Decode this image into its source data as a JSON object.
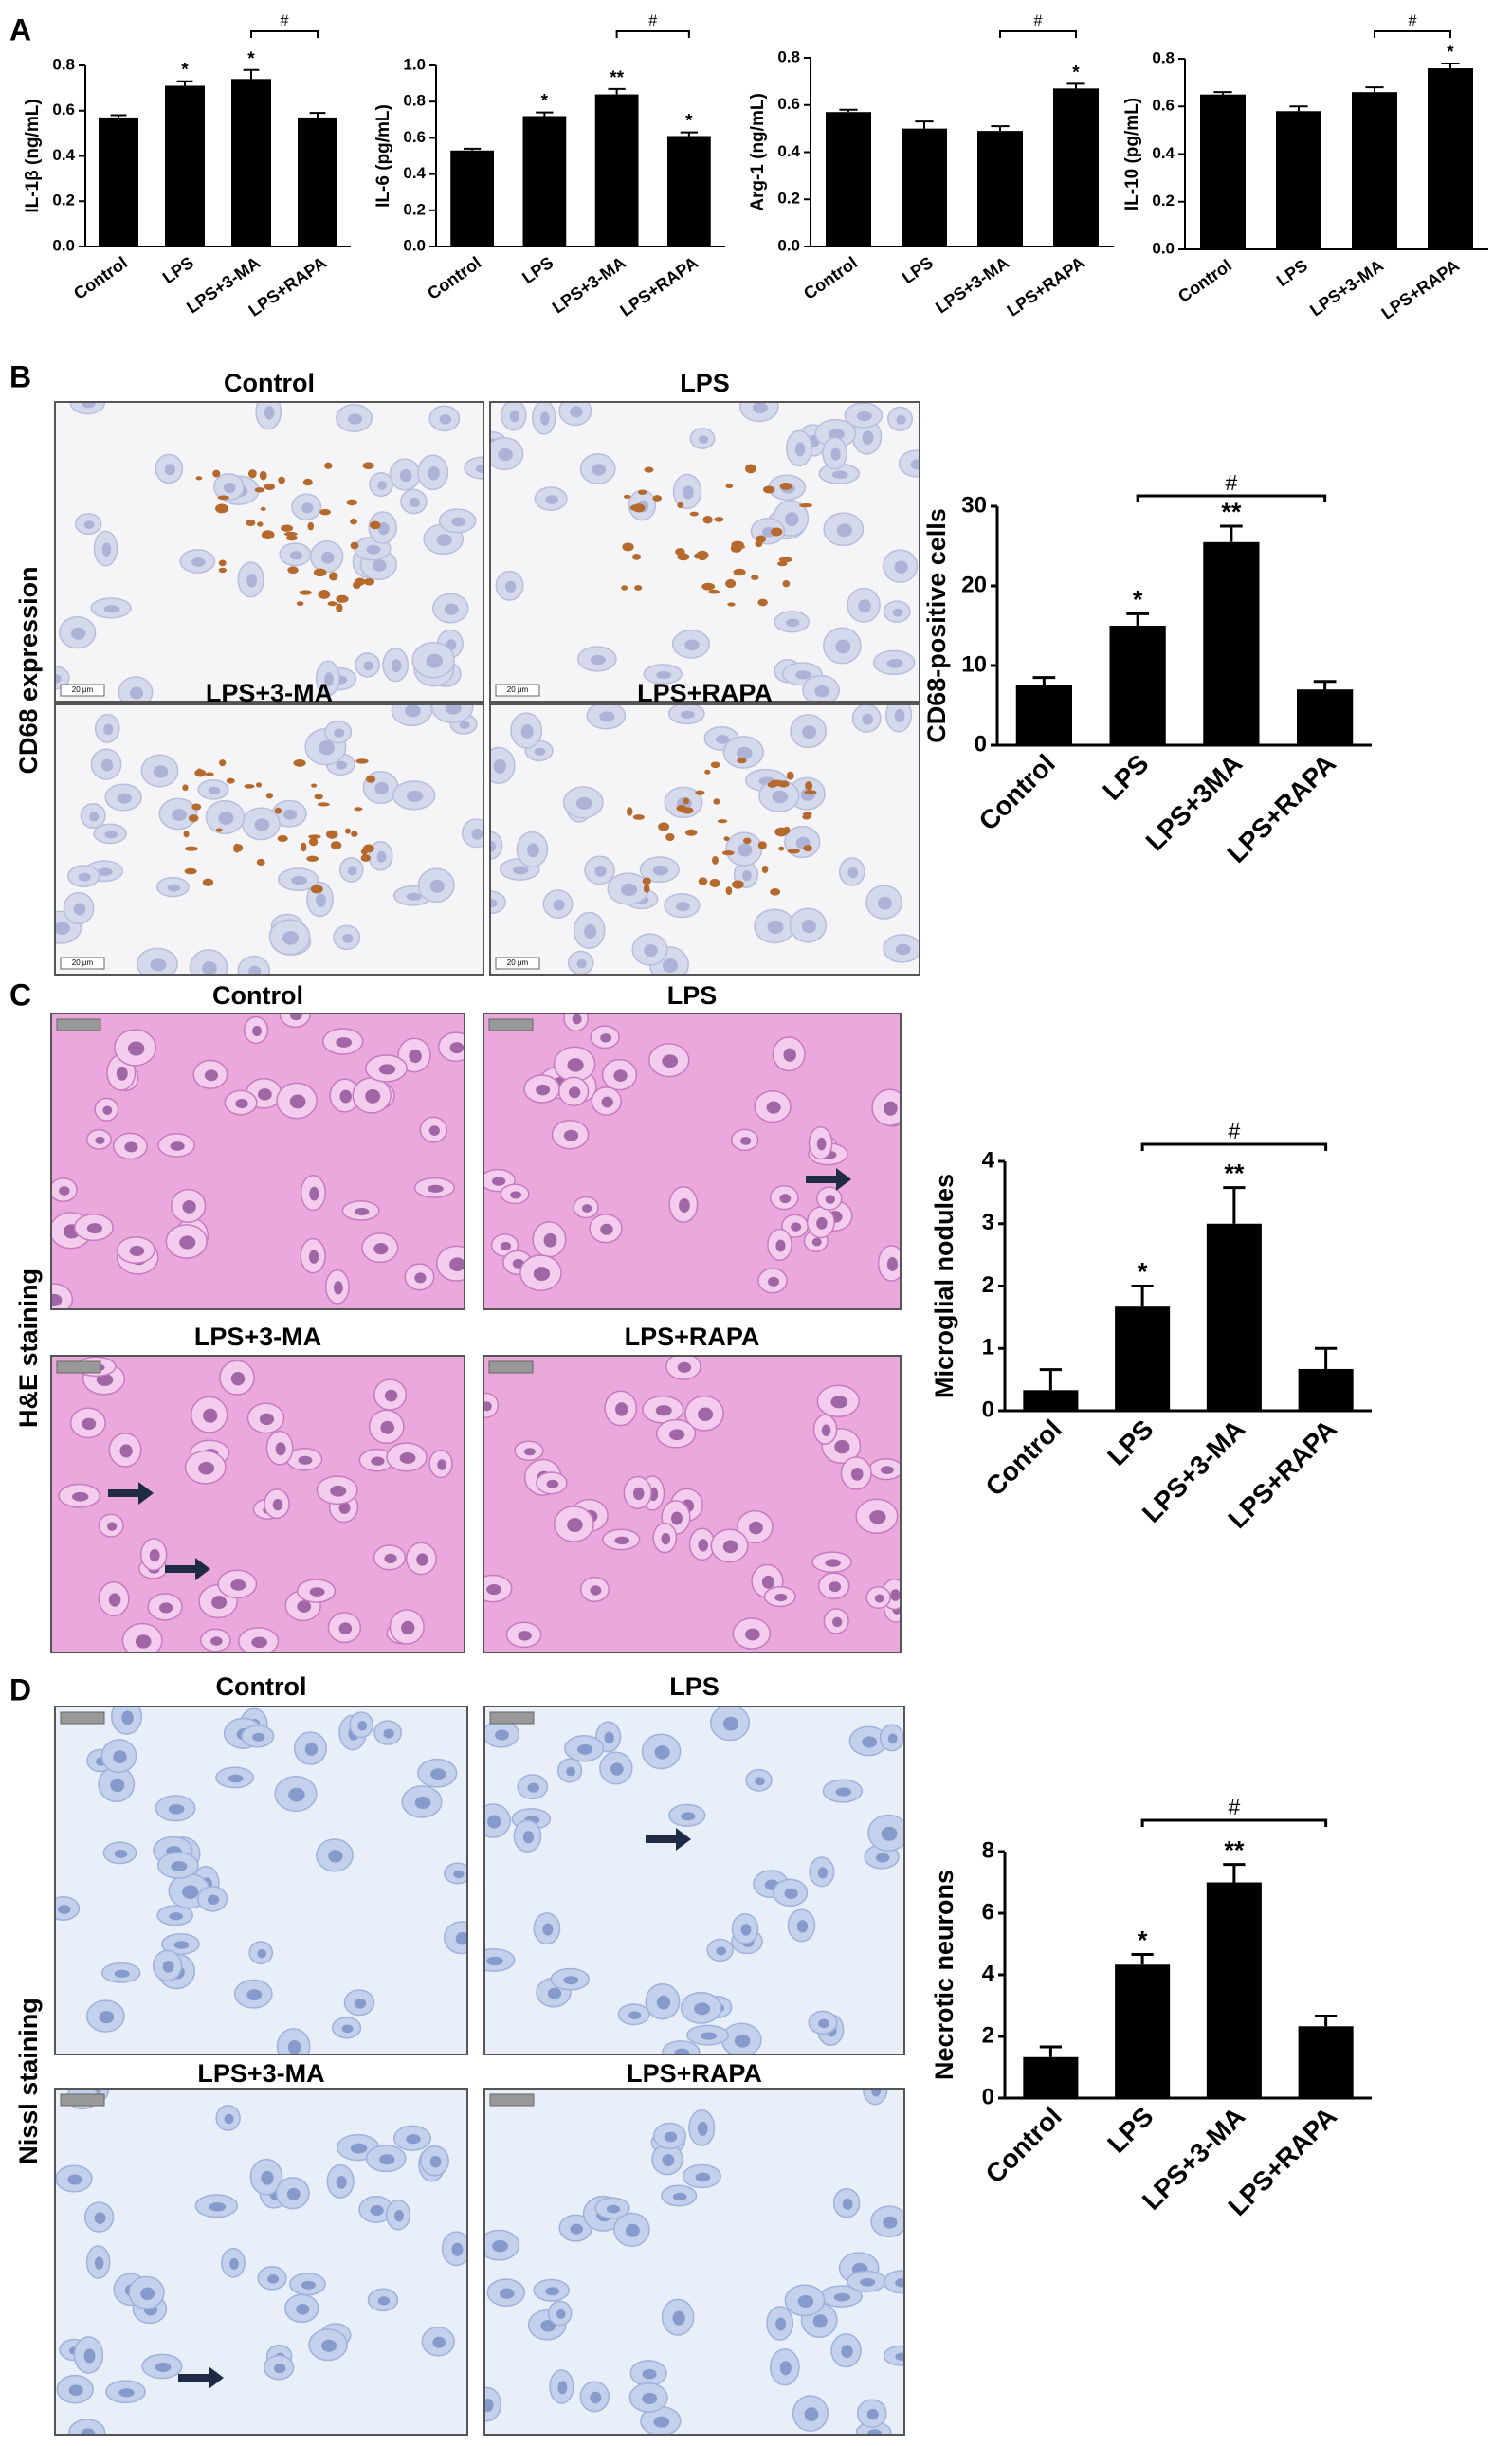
{
  "figure": {
    "panels": [
      {
        "letter": "A"
      },
      {
        "letter": "B",
        "row_label": "CD68 expression",
        "image_labels": [
          "Control",
          "LPS",
          "LPS+3-MA",
          "LPS+RAPA"
        ],
        "scale_bar": "20 μm"
      },
      {
        "letter": "C",
        "row_label": "H&E staining",
        "image_labels": [
          "Control",
          "LPS",
          "LPS+3-MA",
          "LPS+RAPA"
        ]
      },
      {
        "letter": "D",
        "row_label": "Nissl staining",
        "image_labels": [
          "Control",
          "LPS",
          "LPS+3-MA",
          "LPS+RAPA"
        ]
      }
    ]
  },
  "chart_data": [
    {
      "type": "bar",
      "y_label": "IL-1β (ng/mL)",
      "categories": [
        "Control",
        "LPS",
        "LPS+3-MA",
        "LPS+RAPA"
      ],
      "values": [
        0.57,
        0.71,
        0.74,
        0.57
      ],
      "errors": [
        0.01,
        0.02,
        0.04,
        0.02
      ],
      "markers": [
        null,
        "*",
        "*",
        null
      ],
      "bracket": {
        "label": "#",
        "from": "LPS+3-MA",
        "to": "LPS+RAPA"
      },
      "color": "#000000",
      "ylim": [
        0,
        0.8
      ],
      "yticks": [
        {
          "value": 0,
          "label": "0.0"
        },
        0.2,
        0.4,
        0.6,
        0.8
      ]
    },
    {
      "type": "bar",
      "y_label": "IL-6 (pg/mL)",
      "categories": [
        "Control",
        "LPS",
        "LPS+3-MA",
        "LPS+RAPA"
      ],
      "values": [
        0.53,
        0.72,
        0.84,
        0.61
      ],
      "errors": [
        0.01,
        0.02,
        0.03,
        0.02
      ],
      "markers": [
        null,
        "*",
        "**",
        "*"
      ],
      "bracket": {
        "label": "#",
        "from": "LPS+3-MA",
        "to": "LPS+RAPA"
      },
      "color": "#000000",
      "ylim": [
        0,
        1.0
      ],
      "yticks": [
        {
          "value": 0,
          "label": "0.0"
        },
        0.2,
        0.4,
        0.6,
        0.8,
        {
          "value": 1,
          "label": "1.0"
        }
      ]
    },
    {
      "type": "bar",
      "y_label": "Arg-1 (ng/mL)",
      "categories": [
        "Control",
        "LPS",
        "LPS+3-MA",
        "LPS+RAPA"
      ],
      "values": [
        0.57,
        0.5,
        0.49,
        0.67
      ],
      "errors": [
        0.01,
        0.03,
        0.02,
        0.02
      ],
      "markers": [
        null,
        null,
        null,
        "*"
      ],
      "bracket": {
        "label": "#",
        "from": "LPS+3-MA",
        "to": "LPS+RAPA"
      },
      "color": "#000000",
      "ylim": [
        0,
        0.8
      ],
      "yticks": [
        {
          "value": 0,
          "label": "0.0"
        },
        0.2,
        0.4,
        0.6,
        0.8
      ]
    },
    {
      "type": "bar",
      "y_label": "IL-10 (pg/mL)",
      "categories": [
        "Control",
        "LPS",
        "LPS+3-MA",
        "LPS+RAPA"
      ],
      "values": [
        0.65,
        0.58,
        0.66,
        0.76
      ],
      "errors": [
        0.01,
        0.02,
        0.02,
        0.02
      ],
      "markers": [
        null,
        null,
        null,
        "*"
      ],
      "bracket": {
        "label": "#",
        "from": "LPS+3-MA",
        "to": "LPS+RAPA"
      },
      "color": "#000000",
      "ylim": [
        0,
        0.8
      ],
      "yticks": [
        {
          "value": 0,
          "label": "0.0"
        },
        0.2,
        0.4,
        0.6,
        0.8
      ]
    },
    {
      "type": "bar",
      "y_label": "CD68-positive cells",
      "categories": [
        "Control",
        "LPS",
        "LPS+3MA",
        "LPS+RAPA"
      ],
      "values": [
        7.5,
        15,
        25.5,
        7
      ],
      "errors": [
        1,
        1.5,
        2,
        1
      ],
      "markers": [
        null,
        "*",
        "**",
        null
      ],
      "bracket": {
        "label": "#",
        "from": "LPS",
        "to": "LPS+RAPA"
      },
      "color": "#000000",
      "ylim": [
        0,
        30
      ],
      "yticks": [
        0,
        10,
        20,
        30
      ]
    },
    {
      "type": "bar",
      "y_label": "Microglial nodules",
      "categories": [
        "Control",
        "LPS",
        "LPS+3-MA",
        "LPS+RAPA"
      ],
      "values": [
        0.33,
        1.67,
        3.0,
        0.67
      ],
      "errors": [
        0.33,
        0.33,
        0.58,
        0.33
      ],
      "markers": [
        null,
        "*",
        "**",
        null
      ],
      "bracket": {
        "label": "#",
        "from": "LPS",
        "to": "LPS+RAPA"
      },
      "color": "#000000",
      "ylim": [
        0,
        4
      ],
      "yticks": [
        0,
        1,
        2,
        3,
        4
      ]
    },
    {
      "type": "bar",
      "y_label": "Necrotic neurons",
      "categories": [
        "Control",
        "LPS",
        "LPS+3-MA",
        "LPS+RAPA"
      ],
      "values": [
        1.33,
        4.33,
        7.0,
        2.33
      ],
      "errors": [
        0.33,
        0.33,
        0.58,
        0.33
      ],
      "markers": [
        null,
        "*",
        "**",
        null
      ],
      "bracket": {
        "label": "#",
        "from": "LPS",
        "to": "LPS+RAPA"
      },
      "color": "#000000",
      "ylim": [
        0,
        8
      ],
      "yticks": [
        0,
        2,
        4,
        6,
        8
      ]
    }
  ]
}
